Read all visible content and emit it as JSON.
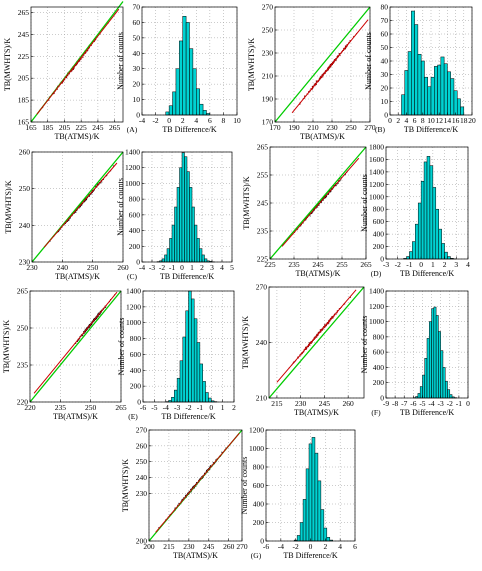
{
  "chart_data": [
    {
      "id": "A-scatter",
      "panel_label": "",
      "type": "scatter",
      "xlabel": "TB(ATMS)/K",
      "ylabel": "TB(MWHTS)/K",
      "xlim": [
        165,
        275
      ],
      "ylim": [
        165,
        270
      ],
      "xticks": [
        165,
        185,
        205,
        225,
        245,
        265
      ],
      "yticks": [
        165,
        185,
        205,
        225,
        245,
        265
      ],
      "grid": true,
      "reference_line": {
        "x": [
          165,
          275
        ],
        "y": [
          165,
          275
        ],
        "color": "#00cc00"
      },
      "fit_line": {
        "x": [
          172,
          270
        ],
        "y": [
          172,
          268
        ],
        "color": "#cc0000"
      },
      "points": {
        "x_range": [
          172,
          268
        ],
        "color": "#8b0000"
      }
    },
    {
      "id": "A-hist",
      "panel_label": "(A)",
      "type": "bar",
      "xlabel": "TB Difference/K",
      "ylabel": "Number of counts",
      "xlim": [
        -4,
        10
      ],
      "ylim": [
        0,
        70
      ],
      "xticks": [
        -4,
        -2,
        0,
        2,
        4,
        6,
        8,
        10
      ],
      "yticks": [
        0,
        10,
        20,
        30,
        40,
        50,
        60,
        70
      ],
      "grid": true,
      "bar_color": "#00d2d2",
      "bin_width": 0.5,
      "bin_starts": [
        -0.5,
        0,
        0.5,
        1,
        1.5,
        2,
        2.5,
        3,
        3.5,
        4,
        4.5,
        5,
        5.5
      ],
      "values": [
        2,
        6,
        15,
        30,
        48,
        64,
        60,
        43,
        30,
        17,
        7,
        3,
        1
      ]
    },
    {
      "id": "B-scatter",
      "panel_label": "",
      "type": "scatter",
      "xlabel": "TB(ATMS)/K",
      "ylabel": "TB(MWHTS)/K",
      "xlim": [
        170,
        270
      ],
      "ylim": [
        170,
        270
      ],
      "xticks": [
        170,
        190,
        210,
        230,
        250,
        270
      ],
      "yticks": [
        170,
        190,
        210,
        230,
        250,
        270
      ],
      "grid": true,
      "reference_line": {
        "x": [
          170,
          270
        ],
        "y": [
          170,
          270
        ],
        "color": "#00cc00"
      },
      "fit_line": {
        "x": [
          188,
          268
        ],
        "y": [
          178,
          259
        ],
        "color": "#cc0000"
      },
      "points": {
        "x_range": [
          188,
          266
        ],
        "color": "#8b0000"
      }
    },
    {
      "id": "B-hist",
      "panel_label": "(B)",
      "type": "bar",
      "xlabel": "TB Difference/K",
      "ylabel": "Number of counts",
      "xlim": [
        0,
        20
      ],
      "ylim": [
        0,
        80
      ],
      "xticks": [
        0,
        2,
        4,
        6,
        8,
        10,
        12,
        14,
        16,
        18,
        20
      ],
      "yticks": [
        0,
        10,
        20,
        30,
        40,
        50,
        60,
        70,
        80
      ],
      "grid": true,
      "bar_color": "#00d2d2",
      "bin_width": 0.8,
      "bin_starts": [
        2.8,
        3.6,
        4.4,
        5.2,
        6.0,
        6.8,
        7.6,
        8.4,
        9.2,
        10.0,
        10.8,
        11.6,
        12.4,
        13.2,
        14.0,
        14.8,
        15.6,
        16.4,
        17.2
      ],
      "values": [
        15,
        33,
        47,
        77,
        67,
        45,
        40,
        28,
        21,
        28,
        36,
        37,
        43,
        38,
        32,
        27,
        18,
        12,
        6
      ]
    },
    {
      "id": "C-scatter",
      "panel_label": "",
      "type": "scatter",
      "xlabel": "TB(ATMS)/K",
      "ylabel": "TB(MWHTS)/K",
      "xlim": [
        230,
        260
      ],
      "ylim": [
        230,
        260
      ],
      "xticks": [
        230,
        240,
        250,
        260
      ],
      "yticks": [
        230,
        240,
        250,
        260
      ],
      "grid": true,
      "reference_line": {
        "x": [
          230,
          260
        ],
        "y": [
          230,
          260
        ],
        "color": "#00cc00"
      },
      "fit_line": {
        "x": [
          234,
          258
        ],
        "y": [
          234,
          257
        ],
        "color": "#cc0000"
      },
      "points": {
        "x_range": [
          234,
          258
        ],
        "color": "#111111"
      }
    },
    {
      "id": "C-hist",
      "panel_label": "(C)",
      "type": "bar",
      "xlabel": "TB Difference/K",
      "ylabel": "Number of counts",
      "xlim": [
        -4,
        5
      ],
      "ylim": [
        0,
        1400
      ],
      "xticks": [
        -4,
        -3,
        -2,
        -1,
        0,
        1,
        2,
        3,
        4,
        5
      ],
      "yticks": [
        0,
        200,
        400,
        600,
        800,
        1000,
        1200,
        1400
      ],
      "grid": true,
      "bar_color": "#00d2d2",
      "bin_width": 0.25,
      "bin_starts": [
        -2.5,
        -2.25,
        -2.0,
        -1.75,
        -1.5,
        -1.25,
        -1.0,
        -0.75,
        -0.5,
        -0.25,
        0.0,
        0.25,
        0.5,
        0.75,
        1.0,
        1.25,
        1.5,
        1.75,
        2.0,
        2.25,
        2.5,
        2.75,
        3.0
      ],
      "values": [
        5,
        15,
        40,
        90,
        170,
        300,
        470,
        700,
        950,
        1200,
        1390,
        1340,
        1150,
        950,
        700,
        470,
        300,
        170,
        90,
        40,
        15,
        8,
        3
      ]
    },
    {
      "id": "D-scatter",
      "panel_label": "",
      "type": "scatter",
      "xlabel": "TB(ATMS)/K",
      "ylabel": "TB(MWHTS)/K",
      "xlim": [
        225,
        265
      ],
      "ylim": [
        225,
        265
      ],
      "xticks": [
        225,
        235,
        245,
        255,
        265
      ],
      "yticks": [
        225,
        235,
        245,
        255,
        265
      ],
      "grid": true,
      "reference_line": {
        "x": [
          225,
          265
        ],
        "y": [
          225,
          265
        ],
        "color": "#00cc00"
      },
      "fit_line": {
        "x": [
          230,
          262
        ],
        "y": [
          229.5,
          261
        ],
        "color": "#cc0000"
      },
      "points": {
        "x_range": [
          231,
          261
        ],
        "color": "#111111"
      }
    },
    {
      "id": "D-hist",
      "panel_label": "(D)",
      "type": "bar",
      "xlabel": "TB Difference/K",
      "ylabel": "Number of counts",
      "xlim": [
        -3,
        4
      ],
      "ylim": [
        0,
        1800
      ],
      "xticks": [
        -3,
        -2,
        -1,
        0,
        1,
        2,
        3,
        4
      ],
      "yticks": [
        0,
        200,
        400,
        600,
        800,
        1000,
        1200,
        1400,
        1600,
        1800
      ],
      "grid": true,
      "bar_color": "#00d2d2",
      "bin_width": 0.25,
      "bin_starts": [
        -1.5,
        -1.25,
        -1.0,
        -0.75,
        -0.5,
        -0.25,
        0.0,
        0.25,
        0.5,
        0.75,
        1.0,
        1.25,
        1.5,
        1.75,
        2.0,
        2.25,
        2.5,
        2.75
      ],
      "values": [
        10,
        40,
        120,
        280,
        560,
        900,
        1250,
        1560,
        1650,
        1500,
        1150,
        800,
        480,
        250,
        110,
        40,
        12,
        4
      ]
    },
    {
      "id": "E-scatter",
      "panel_label": "",
      "type": "scatter",
      "xlabel": "TB(ATMS)/K",
      "ylabel": "TB(MWHTS)/K",
      "xlim": [
        220,
        265
      ],
      "ylim": [
        220,
        265
      ],
      "xticks": [
        220,
        235,
        250,
        265
      ],
      "yticks": [
        220,
        235,
        250,
        265
      ],
      "grid": true,
      "reference_line": {
        "x": [
          220,
          265
        ],
        "y": [
          220,
          265
        ],
        "color": "#00cc00"
      },
      "fit_line": {
        "x": [
          222,
          263
        ],
        "y": [
          223.5,
          264.5
        ],
        "color": "#cc0000"
      },
      "points": {
        "x_range": [
          240,
          262
        ],
        "color": "#111111"
      }
    },
    {
      "id": "E-hist",
      "panel_label": "(E)",
      "type": "bar",
      "xlabel": "TB Difference/K",
      "ylabel": "Number of counts",
      "xlim": [
        -6,
        2
      ],
      "ylim": [
        0,
        1400
      ],
      "xticks": [
        -6,
        -5,
        -4,
        -3,
        -2,
        -1,
        0,
        1,
        2
      ],
      "yticks": [
        0,
        200,
        400,
        600,
        800,
        1000,
        1200,
        1400
      ],
      "grid": true,
      "bar_color": "#00d2d2",
      "bin_width": 0.25,
      "bin_starts": [
        -4.0,
        -3.75,
        -3.5,
        -3.25,
        -3.0,
        -2.75,
        -2.5,
        -2.25,
        -2.0,
        -1.75,
        -1.5,
        -1.25,
        -1.0,
        -0.75,
        -0.5,
        -0.25,
        0.0,
        0.25
      ],
      "values": [
        5,
        20,
        60,
        150,
        300,
        520,
        820,
        1150,
        1400,
        1300,
        1050,
        750,
        480,
        260,
        120,
        50,
        15,
        5
      ]
    },
    {
      "id": "F-scatter",
      "panel_label": "",
      "type": "scatter",
      "xlabel": "TB(ATMS)/K",
      "ylabel": "TB(MWHTS)/K",
      "xlim": [
        210,
        270
      ],
      "ylim": [
        210,
        270
      ],
      "xticks": [
        215,
        230,
        245,
        260
      ],
      "yticks": [
        210,
        240,
        270
      ],
      "grid": true,
      "reference_line": {
        "x": [
          210,
          270
        ],
        "y": [
          210,
          270
        ],
        "color": "#00cc00"
      },
      "fit_line": {
        "x": [
          215,
          265
        ],
        "y": [
          218.5,
          268.5
        ],
        "color": "#cc0000"
      },
      "points": {
        "x_range": [
          218,
          265
        ],
        "color": "#8b0000"
      }
    },
    {
      "id": "F-hist",
      "panel_label": "(F)",
      "type": "bar",
      "xlabel": "TB Difference/K",
      "ylabel": "Number of counts",
      "xlim": [
        -9,
        0
      ],
      "ylim": [
        0,
        1400
      ],
      "xticks": [
        -9,
        -8,
        -7,
        -6,
        -5,
        -4,
        -3,
        -2,
        -1,
        0
      ],
      "yticks": [
        0,
        200,
        400,
        600,
        800,
        1000,
        1200,
        1400
      ],
      "grid": true,
      "bar_color": "#00d2d2",
      "bin_width": 0.25,
      "bin_starts": [
        -6.0,
        -5.75,
        -5.5,
        -5.25,
        -5.0,
        -4.75,
        -4.5,
        -4.25,
        -4.0,
        -3.75,
        -3.5,
        -3.25,
        -3.0,
        -2.75,
        -2.5,
        -2.25,
        -2.0,
        -1.75,
        -1.5
      ],
      "values": [
        5,
        20,
        60,
        150,
        300,
        520,
        780,
        1000,
        1170,
        1190,
        1080,
        870,
        620,
        400,
        220,
        110,
        45,
        15,
        5
      ]
    },
    {
      "id": "G-scatter",
      "panel_label": "",
      "type": "scatter",
      "xlabel": "TB(ATMS)/K",
      "ylabel": "TB(MWHTS)/K",
      "xlim": [
        200,
        270
      ],
      "ylim": [
        200,
        270
      ],
      "xticks": [
        200,
        215,
        230,
        245,
        260,
        270
      ],
      "yticks": [
        200,
        230,
        240,
        250,
        260,
        270
      ],
      "grid": true,
      "reference_line": {
        "x": [
          200,
          270
        ],
        "y": [
          200,
          270
        ],
        "color": "#00cc00"
      },
      "fit_line": {
        "x": [
          205,
          268
        ],
        "y": [
          205.5,
          268
        ],
        "color": "#cc0000"
      },
      "points": {
        "x_range": [
          205,
          267
        ],
        "color": "#111111"
      }
    },
    {
      "id": "G-hist",
      "panel_label": "(G)",
      "type": "bar",
      "xlabel": "TB Difference/K",
      "ylabel": "Number of counts",
      "xlim": [
        -6,
        6
      ],
      "ylim": [
        0,
        1200
      ],
      "xticks": [
        -6,
        -4,
        -2,
        0,
        2,
        4,
        6
      ],
      "yticks": [
        0,
        200,
        400,
        600,
        800,
        1000,
        1200
      ],
      "grid": true,
      "bar_color": "#00d2d2",
      "bin_width": 0.4,
      "bin_starts": [
        -2.2,
        -1.8,
        -1.4,
        -1.0,
        -0.6,
        -0.2,
        0.2,
        0.6,
        1.0,
        1.4,
        1.8,
        2.2,
        2.6
      ],
      "values": [
        10,
        60,
        200,
        450,
        780,
        1050,
        1120,
        950,
        650,
        340,
        140,
        40,
        10
      ]
    }
  ]
}
